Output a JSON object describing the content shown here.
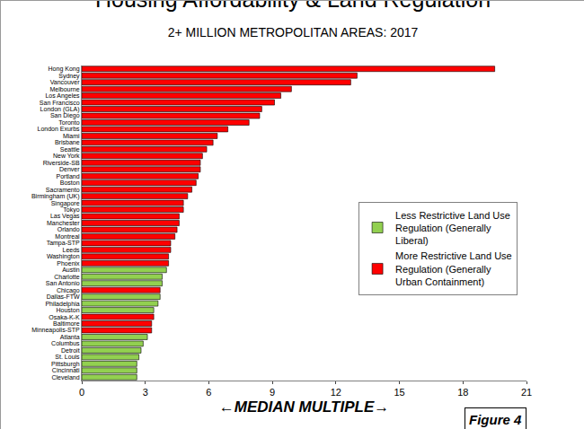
{
  "chart_data": {
    "type": "bar",
    "orientation": "horizontal",
    "title": "Housing Affordability & Land Regulation",
    "subtitle": "2+ MILLION METROPOLITAN AREAS: 2017",
    "x_label": "←MEDIAN MULTIPLE→",
    "annotations": [
      "Figure 4"
    ],
    "categories": [
      "Hong Kong",
      "Sydney",
      "Vancouver",
      "Melbourne",
      "Los Angeles",
      "San Francisco",
      "London (GLA)",
      "San Diego",
      "Toronto",
      "London Exurbs",
      "Miami",
      "Brisbane",
      "Seattle",
      "New York",
      "Riverside-SB",
      "Denver",
      "Portland",
      "Boston",
      "Sacramento",
      "Birmingham (UK)",
      "Singapore",
      "Tokyo",
      "Las Vegas",
      "Manchester",
      "Orlando",
      "Montreal",
      "Tampa-STP",
      "Leeds",
      "Washington",
      "Phoenix",
      "Austin",
      "Charlotte",
      "San Antonio",
      "Chicago",
      "Dallas-FTW",
      "Philadelphia",
      "Houston",
      "Osaka-K-K",
      "Baltimore",
      "Minneapolis-STP",
      "Atlanta",
      "Columbus",
      "Detroit",
      "St. Louis",
      "Pittsburgh",
      "Cincinnati",
      "Cleveland"
    ],
    "series": [
      {
        "name": "Less Restrictive Land Use Regulation (Generally Liberal)",
        "color": "#92d050",
        "values": [
          null,
          null,
          null,
          null,
          null,
          null,
          null,
          null,
          null,
          null,
          null,
          null,
          null,
          null,
          null,
          null,
          null,
          null,
          null,
          null,
          null,
          null,
          null,
          null,
          null,
          null,
          null,
          null,
          null,
          null,
          4.0,
          3.8,
          3.8,
          null,
          3.7,
          3.6,
          3.4,
          null,
          null,
          null,
          3.1,
          2.9,
          2.8,
          2.7,
          2.6,
          2.6,
          2.6
        ]
      },
      {
        "name": "More Restrictive Land Use Regulation (Generally Urban Containment)",
        "color": "#ff0000",
        "values": [
          19.5,
          13.0,
          12.7,
          9.9,
          9.4,
          9.1,
          8.5,
          8.4,
          7.9,
          6.9,
          6.4,
          6.2,
          5.9,
          5.7,
          5.6,
          5.6,
          5.5,
          5.4,
          5.2,
          5.0,
          4.8,
          4.8,
          4.6,
          4.6,
          4.5,
          4.4,
          4.2,
          4.2,
          4.1,
          4.1,
          null,
          null,
          null,
          3.7,
          null,
          null,
          null,
          3.4,
          3.3,
          3.3,
          null,
          null,
          null,
          null,
          null,
          null,
          null
        ]
      }
    ],
    "xlim": [
      0,
      21
    ],
    "xticks": [
      0,
      3,
      6,
      9,
      12,
      15,
      18,
      21
    ],
    "grid": false,
    "legend": "right"
  }
}
